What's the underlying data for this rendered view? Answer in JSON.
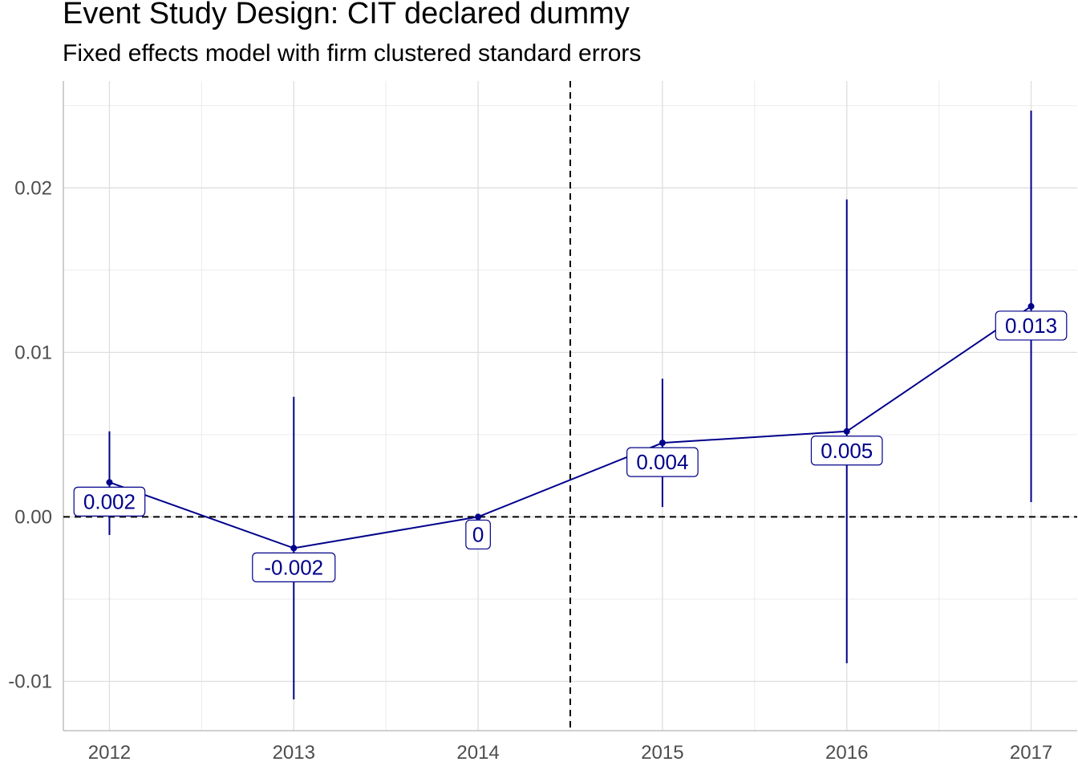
{
  "chart_data": {
    "type": "line",
    "title": "Event Study Design: CIT declared dummy",
    "subtitle": "Fixed effects model with firm clustered standard errors",
    "xlabel": "",
    "ylabel": "",
    "x": [
      2012,
      2013,
      2014,
      2015,
      2016,
      2017
    ],
    "x_tick_labels": [
      "2012",
      "2013",
      "2014",
      "2015",
      "2016",
      "2017"
    ],
    "y_tick_values": [
      -0.01,
      0.0,
      0.01,
      0.02
    ],
    "y_tick_labels": [
      "-0.01",
      "0.00",
      "0.01",
      "0.02"
    ],
    "ylim": [
      -0.013,
      0.0265
    ],
    "xlim": [
      2011.75,
      2017.25
    ],
    "series": [
      {
        "values": [
          0.0021,
          -0.0019,
          0.0,
          0.0045,
          0.0052,
          0.0128
        ],
        "ci_low": [
          -0.0011,
          -0.0111,
          0.0,
          0.0006,
          -0.0089,
          0.0009
        ],
        "ci_high": [
          0.0052,
          0.0073,
          0.0,
          0.0084,
          0.0193,
          0.0247
        ],
        "data_labels": [
          "0.002",
          "-0.002",
          "0",
          "0.004",
          "0.005",
          "0.013"
        ]
      }
    ],
    "reference_lines": {
      "horizontal_y": 0.0,
      "vertical_x": 2014.5,
      "style": "dashed"
    },
    "grid": true,
    "legend": "none",
    "colors": {
      "series": "#00008B",
      "reference": "#000000",
      "grid": "#EBEBEB",
      "ticks": "#4D4D4D"
    }
  }
}
